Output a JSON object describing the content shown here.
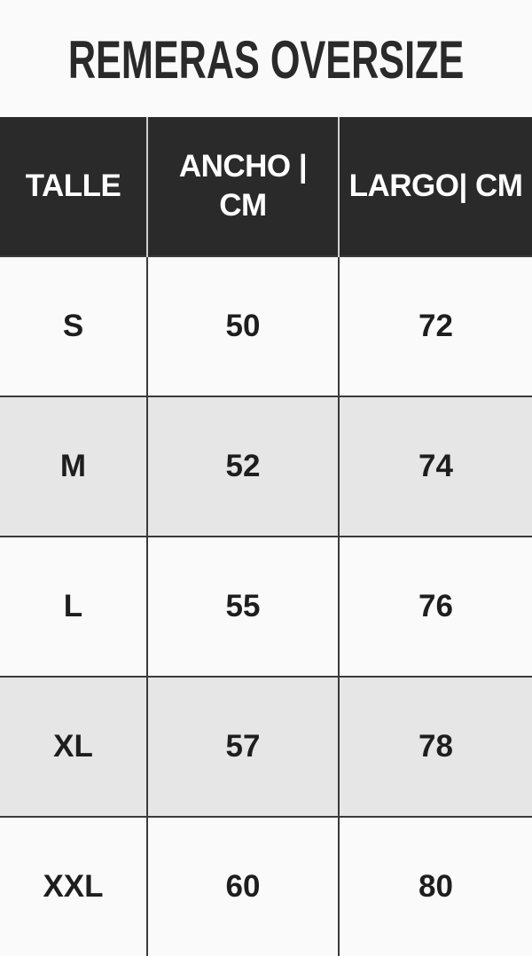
{
  "title": "REMERAS OVERSIZE",
  "table": {
    "headers": [
      "TALLE",
      "ANCHO | CM",
      "LARGO| CM"
    ],
    "rows": [
      [
        "S",
        "50",
        "72"
      ],
      [
        "M",
        "52",
        "74"
      ],
      [
        "L",
        "55",
        "76"
      ],
      [
        "XL",
        "57",
        "78"
      ],
      [
        "XXL",
        "60",
        "80"
      ]
    ]
  },
  "colors": {
    "header_bg": "#2a2a2a",
    "row_light": "#fafafa",
    "row_shaded": "#e6e6e6"
  }
}
